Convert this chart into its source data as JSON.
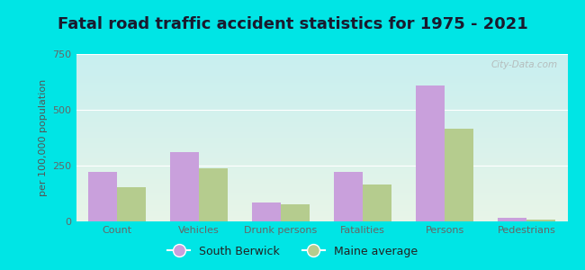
{
  "title": "Fatal road traffic accident statistics for 1975 - 2021",
  "ylabel": "per 100,000 population",
  "categories": [
    "Count",
    "Vehicles",
    "Drunk persons",
    "Fatalities",
    "Persons",
    "Pedestrians"
  ],
  "south_berwick": [
    220,
    310,
    85,
    220,
    610,
    15
  ],
  "maine_average": [
    155,
    238,
    75,
    165,
    415,
    10
  ],
  "south_berwick_color": "#c9a0dc",
  "maine_average_color": "#b5cc8e",
  "ylim": [
    0,
    750
  ],
  "yticks": [
    0,
    250,
    500,
    750
  ],
  "background_outer": "#00e5e5",
  "background_inner_top": "#e8f5e8",
  "background_inner_bottom": "#c8eff0",
  "bar_width": 0.35,
  "title_fontsize": 13,
  "legend_labels": [
    "South Berwick",
    "Maine average"
  ],
  "watermark": "City-Data.com",
  "axis_label_color": "#555555",
  "tick_label_color": "#666666"
}
